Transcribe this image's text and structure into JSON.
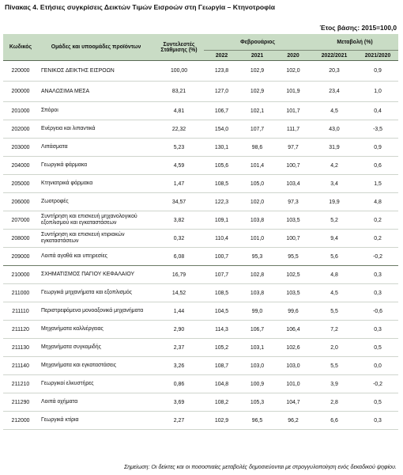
{
  "title": "Πίνακας 4. Ετήσιες συγκρίσεις Δεικτών Τιμών Εισροών στη Γεωργία – Κτηνοτροφία",
  "base_year_label": "Έτος βάσης: 2015=100,0",
  "headers": {
    "code": "Κωδικός",
    "group": "Ομάδες και υποομάδες προϊόντων",
    "weight": "Συντελεστές Στάθμισης (%)",
    "february": "Φεβρουάριος",
    "change": "Μεταβολή (%)",
    "y2022": "2022",
    "y2021": "2021",
    "y2020": "2020",
    "ch1": "2022/2021",
    "ch2": "2021/2020"
  },
  "rows": [
    {
      "code": "220000",
      "name": "ΓΕΝΙΚΟΣ ΔΕΙΚΤΗΣ ΕΙΣΡΟΩΝ",
      "weight": "100,00",
      "v2022": "123,8",
      "v2021": "102,9",
      "v2020": "102,0",
      "ch1": "20,3",
      "ch2": "0,9"
    },
    {
      "code": "200000",
      "name": "ΑΝΑΛΩΣΙΜΑ ΜΕΣΑ",
      "weight": "83,21",
      "v2022": "127,0",
      "v2021": "102,9",
      "v2020": "101,9",
      "ch1": "23,4",
      "ch2": "1,0"
    },
    {
      "code": "201000",
      "name": "Σπόροι",
      "weight": "4,81",
      "v2022": "106,7",
      "v2021": "102,1",
      "v2020": "101,7",
      "ch1": "4,5",
      "ch2": "0,4"
    },
    {
      "code": "202000",
      "name": "Ενέργεια και λιπαντικά",
      "weight": "22,32",
      "v2022": "154,0",
      "v2021": "107,7",
      "v2020": "111,7",
      "ch1": "43,0",
      "ch2": "-3,5"
    },
    {
      "code": "203000",
      "name": "Λιπάσματα",
      "weight": "5,23",
      "v2022": "130,1",
      "v2021": "98,6",
      "v2020": "97,7",
      "ch1": "31,9",
      "ch2": "0,9"
    },
    {
      "code": "204000",
      "name": "Γεωργικά φάρμακα",
      "weight": "4,59",
      "v2022": "105,6",
      "v2021": "101,4",
      "v2020": "100,7",
      "ch1": "4,2",
      "ch2": "0,6"
    },
    {
      "code": "205000",
      "name": "Κτηνιατρικά φάρμακα",
      "weight": "1,47",
      "v2022": "108,5",
      "v2021": "105,0",
      "v2020": "103,4",
      "ch1": "3,4",
      "ch2": "1,5"
    },
    {
      "code": "206000",
      "name": "Ζωοτροφές",
      "weight": "34,57",
      "v2022": "122,3",
      "v2021": "102,0",
      "v2020": "97,3",
      "ch1": "19,9",
      "ch2": "4,8"
    },
    {
      "code": "207000",
      "name": "Συντήρηση και επισκευή μηχανολογικού εξοπλισμού και εγκαταστάσεων",
      "weight": "3,82",
      "v2022": "109,1",
      "v2021": "103,8",
      "v2020": "103,5",
      "ch1": "5,2",
      "ch2": "0,2"
    },
    {
      "code": "208000",
      "name": "Συντήρηση και επισκευή κτιριακών εγκαταστάσεων",
      "weight": "0,32",
      "v2022": "110,4",
      "v2021": "101,0",
      "v2020": "100,7",
      "ch1": "9,4",
      "ch2": "0,2"
    },
    {
      "code": "209000",
      "name": "Λοιπά αγαθά και υπηρεσίες",
      "weight": "6,08",
      "v2022": "100,7",
      "v2021": "95,3",
      "v2020": "95,5",
      "ch1": "5,6",
      "ch2": "-0,2"
    },
    {
      "code": "210000",
      "name": "ΣΧΗΜΑΤΙΣΜΟΣ ΠΑΓΙΟΥ ΚΕΦΑΛΑΙΟΥ",
      "weight": "16,79",
      "v2022": "107,7",
      "v2021": "102,8",
      "v2020": "102,5",
      "ch1": "4,8",
      "ch2": "0,3"
    },
    {
      "code": "211000",
      "name": "Γεωργικά μηχανήματα και εξοπλισμός",
      "weight": "14,52",
      "v2022": "108,5",
      "v2021": "103,8",
      "v2020": "103,5",
      "ch1": "4,5",
      "ch2": "0,3"
    },
    {
      "code": "211110",
      "name": "Περιστρεφόμενα μονοαξονικά μηχανήματα",
      "weight": "1,44",
      "v2022": "104,5",
      "v2021": "99,0",
      "v2020": "99,6",
      "ch1": "5,5",
      "ch2": "-0,6"
    },
    {
      "code": "211120",
      "name": "Μηχανήματα καλλιέργειας",
      "weight": "2,90",
      "v2022": "114,3",
      "v2021": "106,7",
      "v2020": "106,4",
      "ch1": "7,2",
      "ch2": "0,3"
    },
    {
      "code": "211130",
      "name": "Μηχανήματα συγκομιδής",
      "weight": "2,37",
      "v2022": "105,2",
      "v2021": "103,1",
      "v2020": "102,6",
      "ch1": "2,0",
      "ch2": "0,5"
    },
    {
      "code": "211140",
      "name": "Μηχανήματα και εγκαταστάσεις",
      "weight": "3,26",
      "v2022": "108,7",
      "v2021": "103,0",
      "v2020": "103,0",
      "ch1": "5,5",
      "ch2": "0,0"
    },
    {
      "code": "211210",
      "name": "Γεωργικοί ελκυστήρες",
      "weight": "0,86",
      "v2022": "104,8",
      "v2021": "100,9",
      "v2020": "101,0",
      "ch1": "3,9",
      "ch2": "-0,2"
    },
    {
      "code": "211290",
      "name": "Λοιπά οχήματα",
      "weight": "3,69",
      "v2022": "108,2",
      "v2021": "105,3",
      "v2020": "104,7",
      "ch1": "2,8",
      "ch2": "0,5"
    },
    {
      "code": "212000",
      "name": "Γεωργικά κτίρια",
      "weight": "2,27",
      "v2022": "102,9",
      "v2021": "96,5",
      "v2020": "96,2",
      "ch1": "6,6",
      "ch2": "0,3"
    }
  ],
  "note": "Σημείωση: Οι δείκτες και οι ποσοστιαίες μεταβολές δημοσιεύονται με στρογγυλοποίηση ενός δεκαδικού ψηφίου."
}
